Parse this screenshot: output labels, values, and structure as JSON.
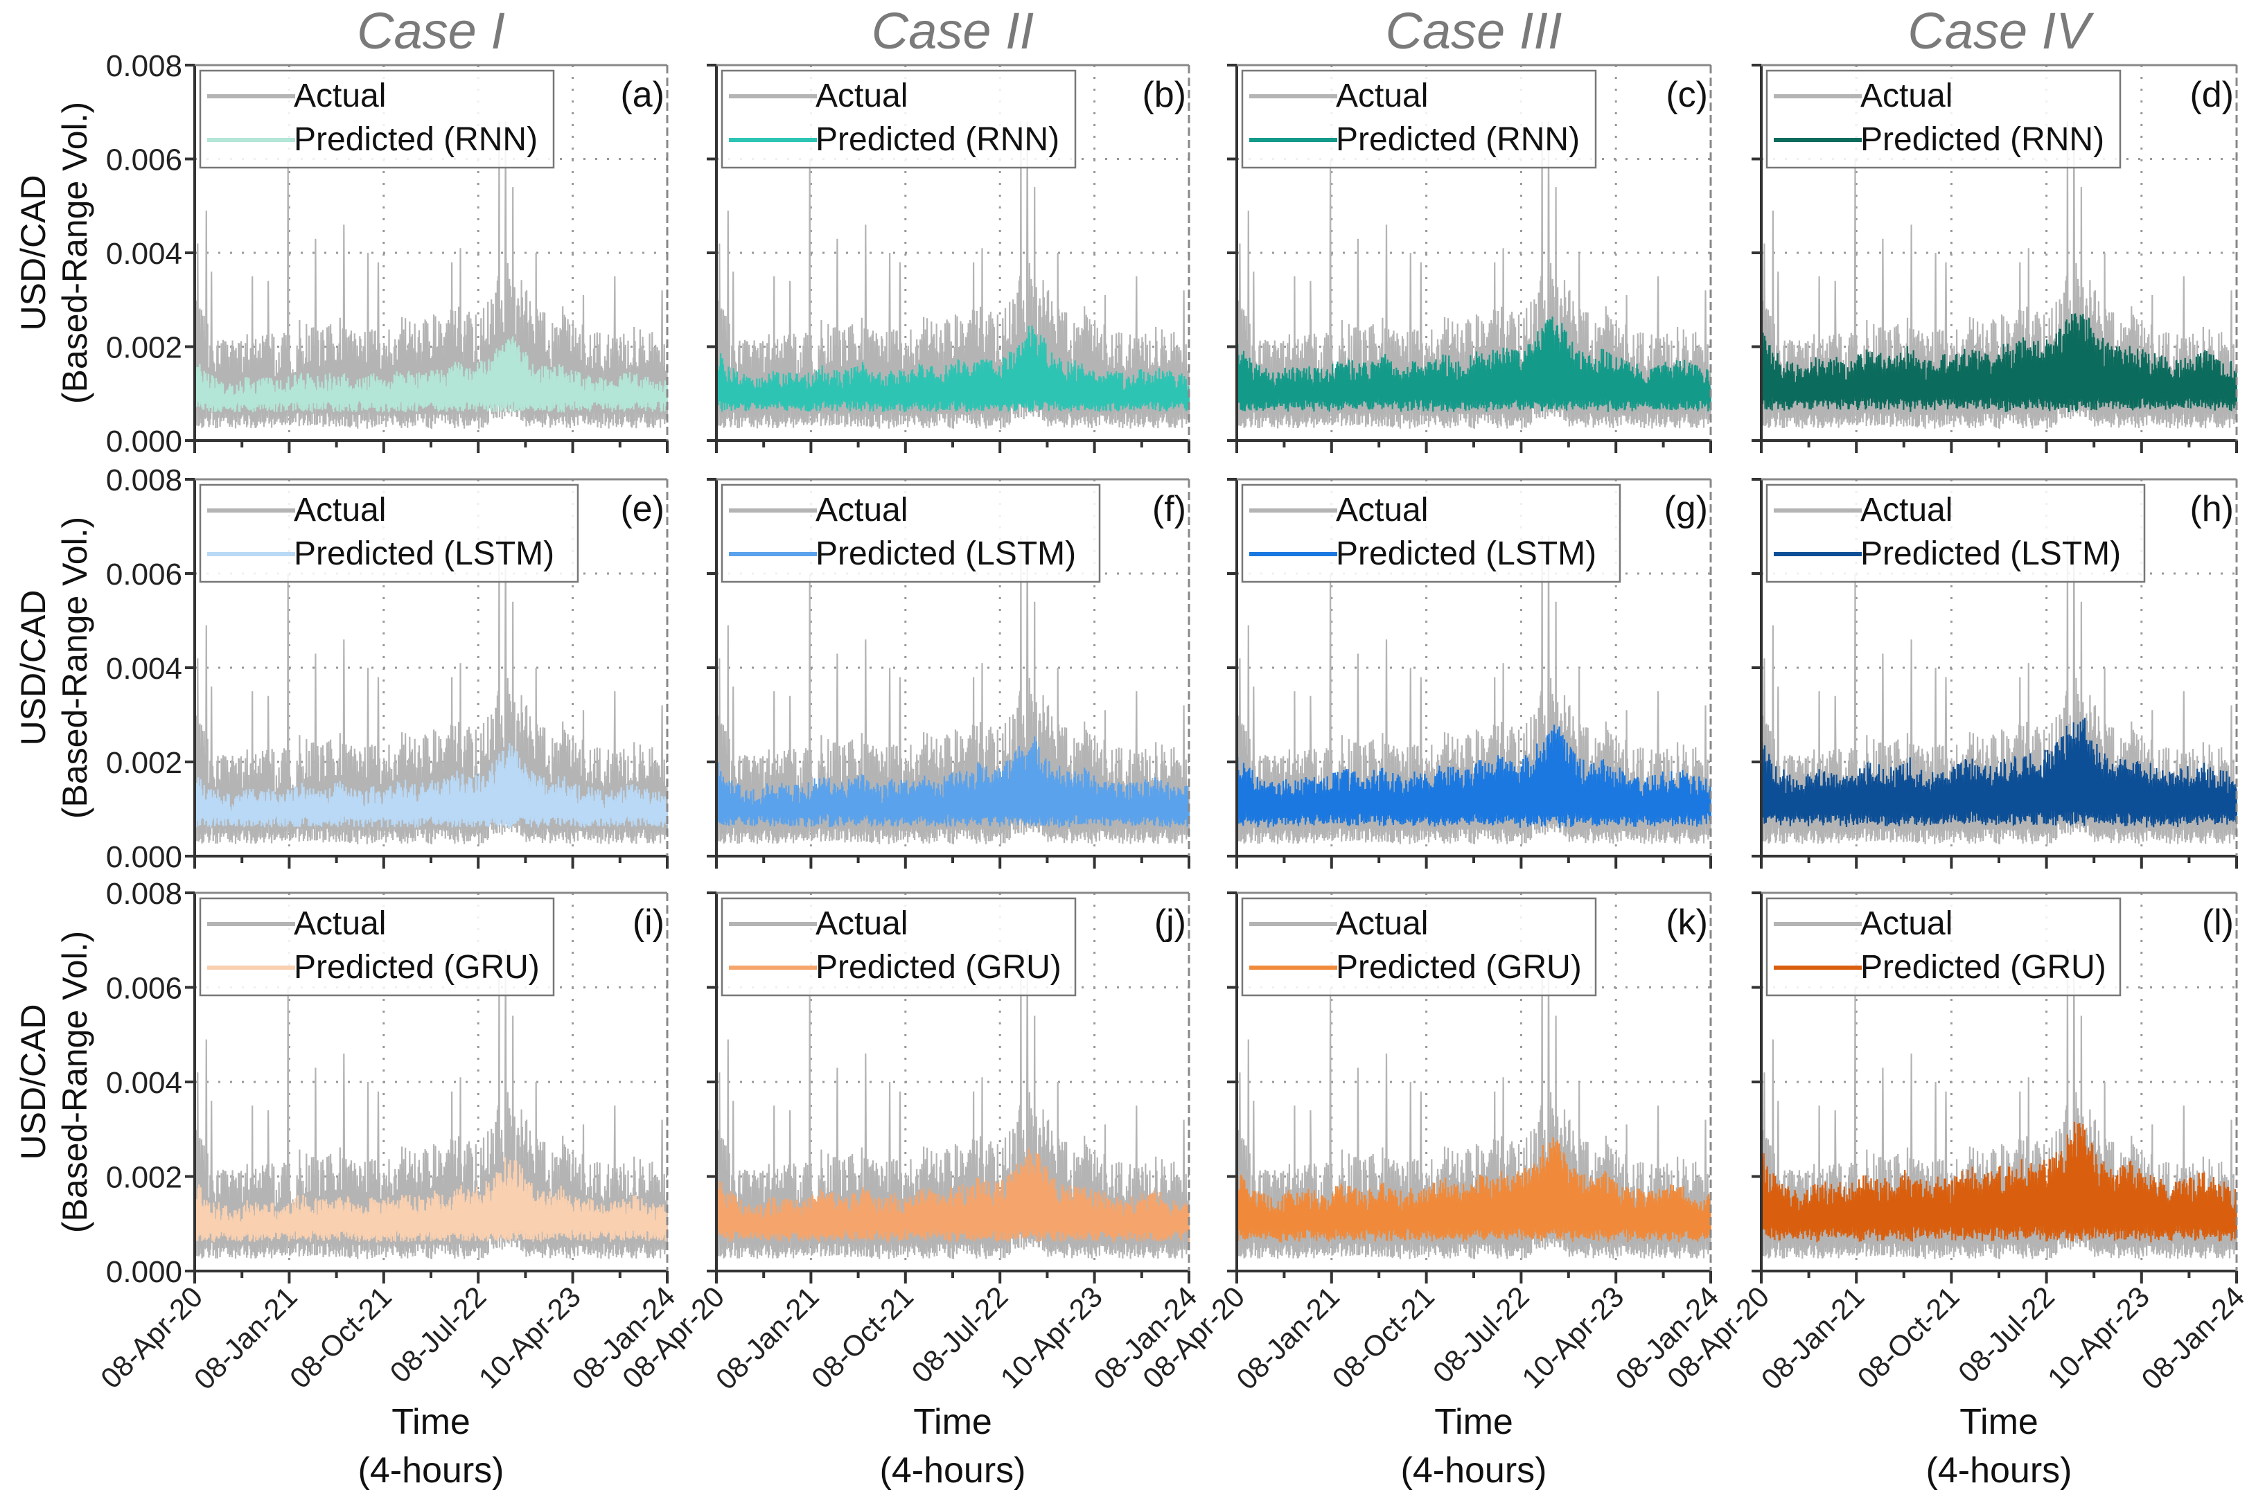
{
  "chart_data": {
    "type": "line",
    "layout": "3 rows x 4 columns small multiples",
    "columns": [
      "Case I",
      "Case II",
      "Case III",
      "Case IV"
    ],
    "ylabel": [
      "USD/CAD",
      "(Based-Range Vol.)"
    ],
    "xlabel": [
      "Time",
      "(4-hours)"
    ],
    "ylim": [
      0,
      0.008
    ],
    "yticks": [
      "0.000",
      "0.002",
      "0.004",
      "0.006",
      "0.008"
    ],
    "xticks": [
      {
        "label": "08-Apr-20",
        "month": 0
      },
      {
        "label": "08-Jan-21",
        "month": 9
      },
      {
        "label": "08-Oct-21",
        "month": 18
      },
      {
        "label": "08-Jul-22",
        "month": 27
      },
      {
        "label": "10-Apr-23",
        "month": 36
      },
      {
        "label": "08-Jan-24",
        "month": 45
      }
    ],
    "grid": "dotted",
    "legend_position": "top-left",
    "actual": {
      "name": "Actual",
      "color": "#b4b4b4",
      "monthly_upper_envelope": [
        0.0032,
        0.0026,
        0.0024,
        0.0022,
        0.0021,
        0.0024,
        0.0023,
        0.0024,
        0.0022,
        0.0024,
        0.0026,
        0.0025,
        0.0024,
        0.0025,
        0.0027,
        0.0024,
        0.0023,
        0.0025,
        0.0024,
        0.0026,
        0.0027,
        0.0025,
        0.0026,
        0.0028,
        0.0027,
        0.003,
        0.0028,
        0.0029,
        0.0031,
        0.0036,
        0.004,
        0.0036,
        0.003,
        0.0028,
        0.0027,
        0.0029,
        0.0026,
        0.0025,
        0.0024,
        0.0023,
        0.0024,
        0.0025,
        0.0026,
        0.0024,
        0.0023,
        0.0022
      ],
      "typical_lower": 0.0005,
      "spikes": [
        [
          0.3,
          0.0042
        ],
        [
          1.1,
          0.0049
        ],
        [
          1.6,
          0.0036
        ],
        [
          5.5,
          0.0035
        ],
        [
          7.0,
          0.0034
        ],
        [
          8.9,
          0.006
        ],
        [
          11.5,
          0.0043
        ],
        [
          14.2,
          0.0046
        ],
        [
          16.5,
          0.004
        ],
        [
          17.5,
          0.0038
        ],
        [
          24.5,
          0.0038
        ],
        [
          25.3,
          0.0041
        ],
        [
          29.0,
          0.0068
        ],
        [
          29.6,
          0.0068
        ],
        [
          30.3,
          0.0054
        ],
        [
          32.5,
          0.004
        ],
        [
          37.0,
          0.0031
        ],
        [
          40.0,
          0.0035
        ],
        [
          44.5,
          0.0032
        ]
      ]
    },
    "panels": [
      {
        "tag": "(a)",
        "row": "RNN",
        "case": "Case I",
        "legend": [
          "Actual",
          "Predicted (RNN)"
        ],
        "color": "#b3e6d6",
        "pred_upper_ratio": 0.55
      },
      {
        "tag": "(b)",
        "row": "RNN",
        "case": "Case II",
        "legend": [
          "Actual",
          "Predicted (RNN)"
        ],
        "color": "#2ec4b3",
        "pred_upper_ratio": 0.6
      },
      {
        "tag": "(c)",
        "row": "RNN",
        "case": "Case III",
        "legend": [
          "Actual",
          "Predicted (RNN)"
        ],
        "color": "#139a89",
        "pred_upper_ratio": 0.66
      },
      {
        "tag": "(d)",
        "row": "RNN",
        "case": "Case IV",
        "legend": [
          "Actual",
          "Predicted (RNN)"
        ],
        "color": "#0b6b5c",
        "pred_upper_ratio": 0.72
      },
      {
        "tag": "(e)",
        "row": "LSTM",
        "case": "Case I",
        "legend": [
          "Actual",
          "Predicted (LSTM)"
        ],
        "color": "#b9d9f6",
        "pred_upper_ratio": 0.58
      },
      {
        "tag": "(f)",
        "row": "LSTM",
        "case": "Case II",
        "legend": [
          "Actual",
          "Predicted (LSTM)"
        ],
        "color": "#5aa2ec",
        "pred_upper_ratio": 0.64
      },
      {
        "tag": "(g)",
        "row": "LSTM",
        "case": "Case III",
        "legend": [
          "Actual",
          "Predicted (LSTM)"
        ],
        "color": "#1a78e0",
        "pred_upper_ratio": 0.7
      },
      {
        "tag": "(h)",
        "row": "LSTM",
        "case": "Case IV",
        "legend": [
          "Actual",
          "Predicted (LSTM)"
        ],
        "color": "#0d4f96",
        "pred_upper_ratio": 0.75
      },
      {
        "tag": "(i)",
        "row": "GRU",
        "case": "Case I",
        "legend": [
          "Actual",
          "Predicted (GRU)"
        ],
        "color": "#f9d0b0",
        "pred_upper_ratio": 0.6
      },
      {
        "tag": "(j)",
        "row": "GRU",
        "case": "Case II",
        "legend": [
          "Actual",
          "Predicted (GRU)"
        ],
        "color": "#f5a56c",
        "pred_upper_ratio": 0.64
      },
      {
        "tag": "(k)",
        "row": "GRU",
        "case": "Case III",
        "legend": [
          "Actual",
          "Predicted (GRU)"
        ],
        "color": "#f08a3a",
        "pred_upper_ratio": 0.7
      },
      {
        "tag": "(l)",
        "row": "GRU",
        "case": "Case IV",
        "legend": [
          "Actual",
          "Predicted (GRU)"
        ],
        "color": "#d95f0e",
        "pred_upper_ratio": 0.78
      }
    ]
  }
}
